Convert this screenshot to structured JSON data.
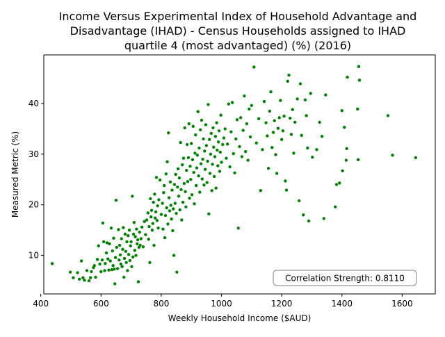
{
  "chart_data": {
    "type": "scatter",
    "title_lines": [
      "Income Versus Experimental Index of Household Advantage and",
      "Disadvantage (IHAD) - Census Households assigned to IHAD",
      "quartile 4 (most advantaged) (%) (2016)"
    ],
    "xlabel": "Weekly Household Income ($AUD)",
    "ylabel": "Measured Metric (%)",
    "xlim": [
      410,
      1710
    ],
    "ylim": [
      2.4,
      49.6
    ],
    "xticks": [
      400,
      600,
      800,
      1000,
      1200,
      1400,
      1600
    ],
    "yticks": [
      10,
      20,
      30,
      40
    ],
    "grid": false,
    "point_color": "#008000",
    "annotation": "Correlation Strength: 0.8110",
    "annotation_position": "bottom-right",
    "points": [
      [
        438,
        8.4
      ],
      [
        498,
        6.7
      ],
      [
        508,
        5.6
      ],
      [
        522,
        6.6
      ],
      [
        528,
        5.3
      ],
      [
        535,
        8.9
      ],
      [
        540,
        5.6
      ],
      [
        545,
        5.1
      ],
      [
        553,
        7.0
      ],
      [
        560,
        5.0
      ],
      [
        565,
        5.6
      ],
      [
        568,
        6.8
      ],
      [
        575,
        7.6
      ],
      [
        578,
        8.0
      ],
      [
        582,
        5.7
      ],
      [
        588,
        9.2
      ],
      [
        592,
        11.9
      ],
      [
        596,
        8.3
      ],
      [
        600,
        6.8
      ],
      [
        604,
        9.1
      ],
      [
        606,
        16.4
      ],
      [
        609,
        12.7
      ],
      [
        612,
        7.0
      ],
      [
        614,
        8.4
      ],
      [
        618,
        10.5
      ],
      [
        620,
        12.5
      ],
      [
        623,
        9.3
      ],
      [
        626,
        7.1
      ],
      [
        628,
        12.3
      ],
      [
        631,
        8.9
      ],
      [
        634,
        15.4
      ],
      [
        636,
        7.2
      ],
      [
        638,
        10.9
      ],
      [
        640,
        8.0
      ],
      [
        642,
        13.4
      ],
      [
        644,
        7.3
      ],
      [
        646,
        4.4
      ],
      [
        648,
        9.6
      ],
      [
        650,
        20.9
      ],
      [
        652,
        11.6
      ],
      [
        655,
        7.4
      ],
      [
        658,
        15.1
      ],
      [
        660,
        9.1
      ],
      [
        662,
        12.0
      ],
      [
        664,
        10.1
      ],
      [
        666,
        8.3
      ],
      [
        668,
        13.3
      ],
      [
        670,
        7.8
      ],
      [
        672,
        11.2
      ],
      [
        674,
        15.5
      ],
      [
        676,
        5.7
      ],
      [
        678,
        9.4
      ],
      [
        680,
        14.2
      ],
      [
        682,
        10.8
      ],
      [
        684,
        8.6
      ],
      [
        686,
        12.7
      ],
      [
        688,
        7.0
      ],
      [
        690,
        13.9
      ],
      [
        692,
        10.2
      ],
      [
        694,
        15.0
      ],
      [
        696,
        9.0
      ],
      [
        698,
        11.9
      ],
      [
        700,
        12.7
      ],
      [
        702,
        7.8
      ],
      [
        704,
        21.7
      ],
      [
        706,
        9.7
      ],
      [
        708,
        14.2
      ],
      [
        710,
        16.5
      ],
      [
        712,
        11.0
      ],
      [
        714,
        13.7
      ],
      [
        716,
        10.0
      ],
      [
        718,
        15.2
      ],
      [
        720,
        12.3
      ],
      [
        722,
        13.1
      ],
      [
        724,
        4.8
      ],
      [
        726,
        11.6
      ],
      [
        728,
        14.6
      ],
      [
        730,
        12.0
      ],
      [
        733,
        13.3
      ],
      [
        736,
        15.6
      ],
      [
        740,
        11.7
      ],
      [
        744,
        16.7
      ],
      [
        748,
        14.1
      ],
      [
        752,
        17.0
      ],
      [
        756,
        18.4
      ],
      [
        758,
        13.2
      ],
      [
        760,
        15.7
      ],
      [
        762,
        8.6
      ],
      [
        764,
        21.2
      ],
      [
        766,
        17.6
      ],
      [
        768,
        18.9
      ],
      [
        770,
        15.0
      ],
      [
        772,
        16.3
      ],
      [
        774,
        20.5
      ],
      [
        776,
        12.0
      ],
      [
        778,
        22.1
      ],
      [
        780,
        17.4
      ],
      [
        782,
        18.6
      ],
      [
        784,
        25.4
      ],
      [
        786,
        16.9
      ],
      [
        788,
        19.8
      ],
      [
        790,
        15.4
      ],
      [
        792,
        21.0
      ],
      [
        796,
        24.9
      ],
      [
        800,
        18.1
      ],
      [
        804,
        20.3
      ],
      [
        806,
        15.2
      ],
      [
        808,
        22.4
      ],
      [
        810,
        23.8
      ],
      [
        812,
        13.5
      ],
      [
        814,
        17.9
      ],
      [
        816,
        26.1
      ],
      [
        818,
        19.4
      ],
      [
        820,
        28.5
      ],
      [
        822,
        16.2
      ],
      [
        824,
        34.2
      ],
      [
        826,
        21.4
      ],
      [
        828,
        18.8
      ],
      [
        830,
        24.5
      ],
      [
        832,
        19.9
      ],
      [
        834,
        17.2
      ],
      [
        836,
        22.9
      ],
      [
        838,
        14.9
      ],
      [
        840,
        19.2
      ],
      [
        842,
        10.0
      ],
      [
        844,
        24.0
      ],
      [
        846,
        20.3
      ],
      [
        848,
        26.0
      ],
      [
        850,
        18.3
      ],
      [
        852,
        6.7
      ],
      [
        854,
        23.5
      ],
      [
        856,
        27.1
      ],
      [
        858,
        21.7
      ],
      [
        860,
        25.3
      ],
      [
        862,
        19.0
      ],
      [
        864,
        32.3
      ],
      [
        866,
        23.0
      ],
      [
        868,
        17.0
      ],
      [
        870,
        27.9
      ],
      [
        872,
        20.5
      ],
      [
        874,
        29.2
      ],
      [
        876,
        24.2
      ],
      [
        878,
        35.2
      ],
      [
        880,
        22.6
      ],
      [
        882,
        19.6
      ],
      [
        884,
        26.8
      ],
      [
        886,
        31.9
      ],
      [
        888,
        24.6
      ],
      [
        890,
        29.3
      ],
      [
        892,
        36.0
      ],
      [
        894,
        21.3
      ],
      [
        896,
        27.6
      ],
      [
        898,
        25.0
      ],
      [
        900,
        32.1
      ],
      [
        902,
        22.0
      ],
      [
        904,
        28.9
      ],
      [
        906,
        35.5
      ],
      [
        908,
        26.4
      ],
      [
        910,
        20.2
      ],
      [
        912,
        30.2
      ],
      [
        914,
        33.8
      ],
      [
        916,
        23.8
      ],
      [
        918,
        27.3
      ],
      [
        920,
        29.8
      ],
      [
        922,
        38.4
      ],
      [
        924,
        25.7
      ],
      [
        926,
        31.2
      ],
      [
        928,
        22.5
      ],
      [
        930,
        34.8
      ],
      [
        932,
        28.1
      ],
      [
        934,
        36.7
      ],
      [
        936,
        25.1
      ],
      [
        938,
        29.0
      ],
      [
        940,
        33.0
      ],
      [
        942,
        23.9
      ],
      [
        944,
        30.6
      ],
      [
        946,
        27.0
      ],
      [
        948,
        35.8
      ],
      [
        950,
        31.7
      ],
      [
        952,
        24.4
      ],
      [
        954,
        28.6
      ],
      [
        956,
        39.8
      ],
      [
        958,
        18.2
      ],
      [
        960,
        32.9
      ],
      [
        962,
        26.2
      ],
      [
        964,
        30.0
      ],
      [
        966,
        34.1
      ],
      [
        968,
        22.8
      ],
      [
        970,
        28.0
      ],
      [
        972,
        35.2
      ],
      [
        974,
        31.4
      ],
      [
        976,
        25.6
      ],
      [
        978,
        29.5
      ],
      [
        980,
        33.5
      ],
      [
        982,
        23.3
      ],
      [
        984,
        36.2
      ],
      [
        986,
        30.8
      ],
      [
        988,
        27.7
      ],
      [
        990,
        32.4
      ],
      [
        992,
        34.6
      ],
      [
        994,
        26.6
      ],
      [
        996,
        30.4
      ],
      [
        998,
        37.7
      ],
      [
        1000,
        28.4
      ],
      [
        1004,
        31.9
      ],
      [
        1008,
        33.2
      ],
      [
        1012,
        35.0
      ],
      [
        1016,
        29.2
      ],
      [
        1020,
        32.0
      ],
      [
        1024,
        39.9
      ],
      [
        1028,
        27.5
      ],
      [
        1032,
        34.4
      ],
      [
        1036,
        40.2
      ],
      [
        1040,
        30.1
      ],
      [
        1044,
        26.3
      ],
      [
        1048,
        33.0
      ],
      [
        1052,
        36.8
      ],
      [
        1056,
        15.4
      ],
      [
        1060,
        31.5
      ],
      [
        1064,
        37.2
      ],
      [
        1068,
        29.5
      ],
      [
        1072,
        34.7
      ],
      [
        1076,
        41.5
      ],
      [
        1080,
        30.5
      ],
      [
        1084,
        36.0
      ],
      [
        1088,
        28.8
      ],
      [
        1092,
        38.9
      ],
      [
        1096,
        33.4
      ],
      [
        1100,
        39.6
      ],
      [
        1108,
        47.2
      ],
      [
        1116,
        32.2
      ],
      [
        1124,
        37.0
      ],
      [
        1130,
        22.8
      ],
      [
        1136,
        30.9
      ],
      [
        1142,
        40.4
      ],
      [
        1148,
        36.2
      ],
      [
        1152,
        33.6
      ],
      [
        1156,
        27.2
      ],
      [
        1160,
        38.5
      ],
      [
        1164,
        42.3
      ],
      [
        1168,
        31.3
      ],
      [
        1172,
        34.3
      ],
      [
        1176,
        36.6
      ],
      [
        1180,
        29.9
      ],
      [
        1184,
        26.2
      ],
      [
        1188,
        35.1
      ],
      [
        1192,
        37.2
      ],
      [
        1196,
        40.6
      ],
      [
        1200,
        32.9
      ],
      [
        1204,
        34.6
      ],
      [
        1208,
        37.5
      ],
      [
        1212,
        24.7
      ],
      [
        1216,
        22.9
      ],
      [
        1220,
        44.4
      ],
      [
        1224,
        45.6
      ],
      [
        1228,
        37.1
      ],
      [
        1232,
        33.9
      ],
      [
        1236,
        38.8
      ],
      [
        1240,
        30.2
      ],
      [
        1244,
        36.3
      ],
      [
        1252,
        40.9
      ],
      [
        1258,
        20.8
      ],
      [
        1262,
        43.9
      ],
      [
        1266,
        33.7
      ],
      [
        1272,
        18.0
      ],
      [
        1278,
        40.7
      ],
      [
        1282,
        37.6
      ],
      [
        1286,
        31.2
      ],
      [
        1290,
        16.8
      ],
      [
        1296,
        42.0
      ],
      [
        1302,
        29.4
      ],
      [
        1316,
        30.9
      ],
      [
        1326,
        36.3
      ],
      [
        1334,
        33.5
      ],
      [
        1340,
        17.3
      ],
      [
        1346,
        41.7
      ],
      [
        1378,
        19.6
      ],
      [
        1382,
        24.0
      ],
      [
        1392,
        24.3
      ],
      [
        1400,
        38.6
      ],
      [
        1402,
        26.7
      ],
      [
        1408,
        35.3
      ],
      [
        1414,
        28.8
      ],
      [
        1416,
        31.1
      ],
      [
        1418,
        45.2
      ],
      [
        1452,
        38.9
      ],
      [
        1454,
        28.9
      ],
      [
        1456,
        47.3
      ],
      [
        1458,
        44.6
      ],
      [
        1553,
        37.6
      ],
      [
        1568,
        29.8
      ],
      [
        1645,
        29.3
      ]
    ]
  }
}
